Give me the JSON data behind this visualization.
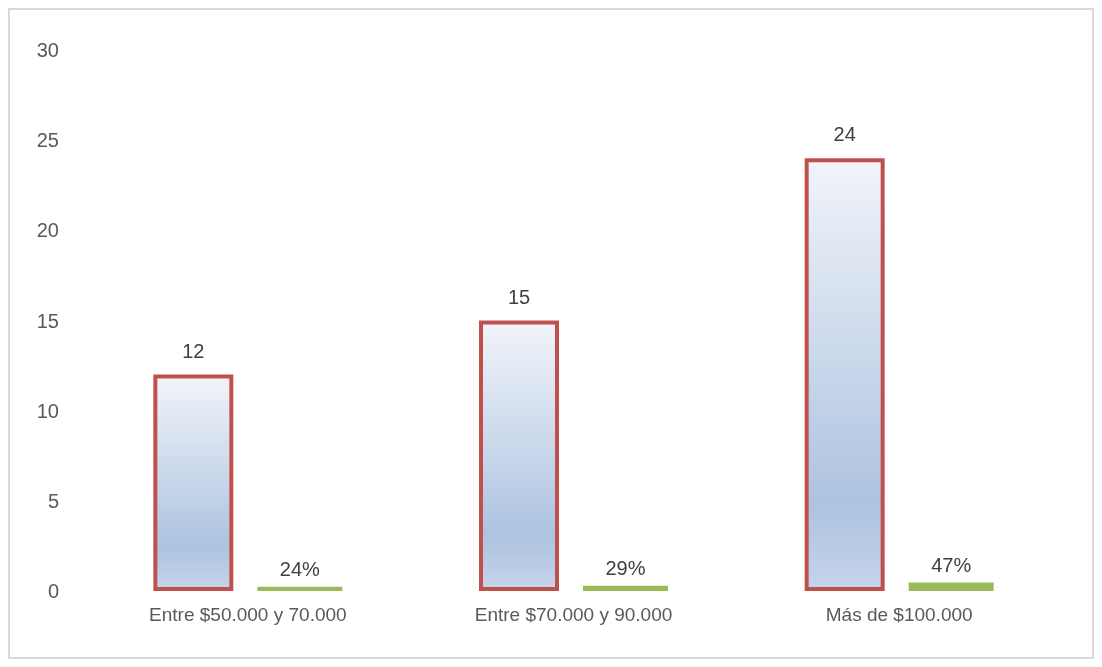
{
  "chart_data": {
    "type": "bar",
    "categories": [
      "Entre $50.000 y 70.000",
      "Entre $70.000 y 90.000",
      "Más de $100.000"
    ],
    "series": [
      {
        "color": "#c0504d",
        "values": [
          12,
          15,
          24
        ],
        "value_labels": [
          "12",
          "15",
          "24"
        ]
      },
      {
        "color": "#9bbb59",
        "values": [
          0.24,
          0.29,
          0.47
        ],
        "value_labels": [
          "24%",
          "29%",
          "47%"
        ]
      }
    ],
    "ylim": [
      0,
      30
    ],
    "yticks": [
      0,
      5,
      10,
      15,
      20,
      25,
      30
    ],
    "grid": false
  }
}
